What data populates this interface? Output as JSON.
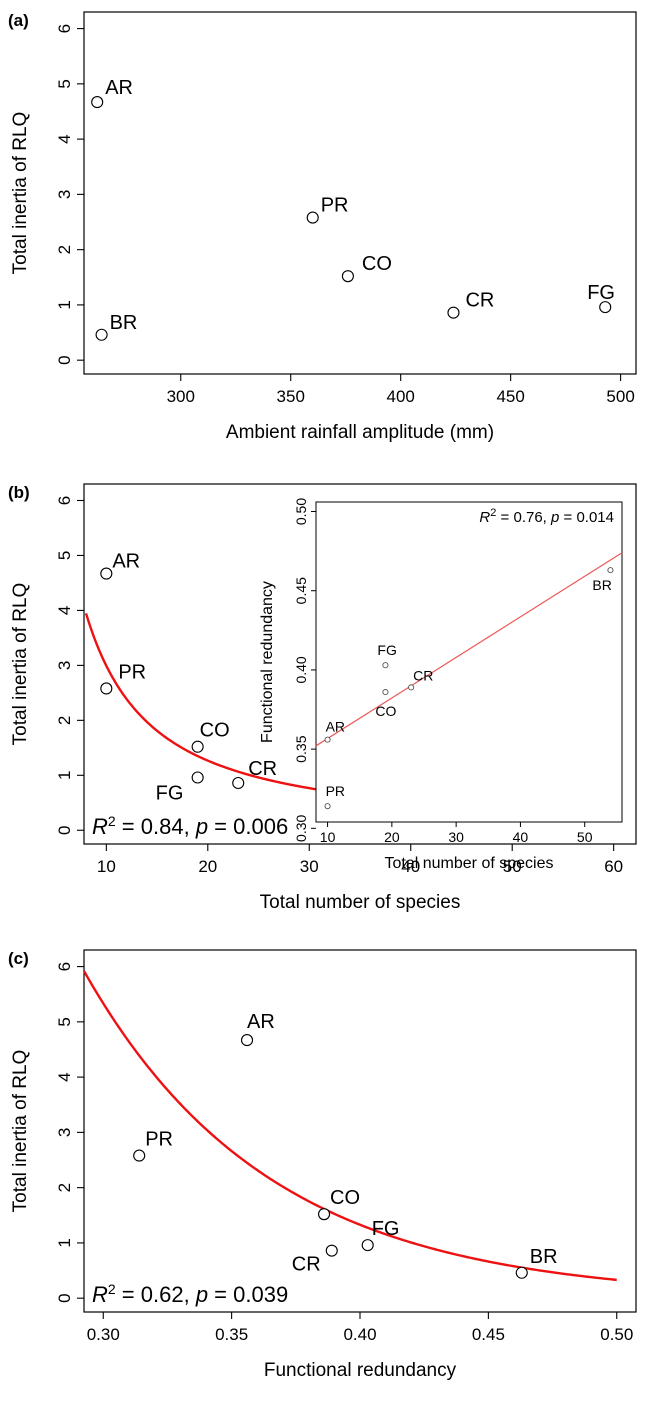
{
  "chart_data": [
    {
      "panel": "(a)",
      "type": "scatter",
      "xlabel": "Ambient rainfall amplitude (mm)",
      "ylabel": "Total inertia of RLQ",
      "xlim": [
        256,
        507
      ],
      "ylim": [
        -0.25,
        6.3
      ],
      "xticks": [
        300,
        350,
        400,
        450,
        500
      ],
      "yticks": [
        0,
        1,
        2,
        3,
        4,
        5,
        6
      ],
      "points": [
        {
          "label": "AR",
          "x": 262,
          "y": 4.67
        },
        {
          "label": "BR",
          "x": 264,
          "y": 0.46
        },
        {
          "label": "PR",
          "x": 360,
          "y": 2.58
        },
        {
          "label": "CO",
          "x": 376,
          "y": 1.52
        },
        {
          "label": "CR",
          "x": 424,
          "y": 0.86
        },
        {
          "label": "FG",
          "x": 493,
          "y": 0.96
        }
      ]
    },
    {
      "panel": "(b)",
      "type": "scatter",
      "xlabel": "Total number of species",
      "ylabel": "Total inertia of RLQ",
      "xlim": [
        7.8,
        62.2
      ],
      "ylim": [
        -0.25,
        6.3
      ],
      "xticks": [
        10,
        20,
        30,
        40,
        50,
        60
      ],
      "yticks": [
        0,
        1,
        2,
        3,
        4,
        5,
        6
      ],
      "points": [
        {
          "label": "AR",
          "x": 10,
          "y": 4.67
        },
        {
          "label": "PR",
          "x": 10,
          "y": 2.58
        },
        {
          "label": "CO",
          "x": 19,
          "y": 1.52
        },
        {
          "label": "FG",
          "x": 19,
          "y": 0.96
        },
        {
          "label": "CR",
          "x": 23,
          "y": 0.86
        },
        {
          "label": "BR",
          "x": 54,
          "y": 0.46
        }
      ],
      "fit": {
        "model": "power",
        "a": 52,
        "b": -1.24,
        "x_from": 8,
        "x_to": 60,
        "color": "#ee1111"
      },
      "stat": {
        "r2_label": "R",
        "r2_sup": "2",
        "r2_rest": " = 0.84, ",
        "p_label": "p",
        "p_rest": " = 0.006"
      },
      "inset": {
        "xlabel": "Total number of species",
        "ylabel": "Functional redundancy",
        "xlim": [
          8.2,
          55.8
        ],
        "ylim": [
          0.304,
          0.506
        ],
        "xticks": [
          10,
          20,
          30,
          40,
          50
        ],
        "yticks": [
          0.3,
          0.35,
          0.4,
          0.45,
          0.5
        ],
        "ytick_labels": [
          "0.30",
          "0.35",
          "0.40",
          "0.45",
          "0.50"
        ],
        "points": [
          {
            "label": "AR",
            "x": 10,
            "y": 0.356
          },
          {
            "label": "PR",
            "x": 10,
            "y": 0.314
          },
          {
            "label": "FG",
            "x": 19,
            "y": 0.403
          },
          {
            "label": "CO",
            "x": 19,
            "y": 0.386
          },
          {
            "label": "CR",
            "x": 23,
            "y": 0.389
          },
          {
            "label": "BR",
            "x": 54,
            "y": 0.463
          }
        ],
        "fit": {
          "model": "linear",
          "intercept": 0.3311,
          "slope": 0.00256,
          "color": "#ee5555"
        },
        "stat": {
          "r2_label": "R",
          "r2_sup": "2",
          "r2_rest": " = 0.76, ",
          "p_label": "p",
          "p_rest": " = 0.014"
        }
      }
    },
    {
      "panel": "(c)",
      "type": "scatter",
      "xlabel": "Functional redundancy",
      "ylabel": "Total inertia of RLQ",
      "xlim": [
        0.2925,
        0.5075
      ],
      "ylim": [
        -0.25,
        6.3
      ],
      "xticks": [
        0.3,
        0.35,
        0.4,
        0.45,
        0.5
      ],
      "xtick_labels": [
        "0.30",
        "0.35",
        "0.40",
        "0.45",
        "0.50"
      ],
      "yticks": [
        0,
        1,
        2,
        3,
        4,
        5,
        6
      ],
      "points": [
        {
          "label": "AR",
          "x": 0.356,
          "y": 4.67
        },
        {
          "label": "PR",
          "x": 0.314,
          "y": 2.58
        },
        {
          "label": "CO",
          "x": 0.386,
          "y": 1.52
        },
        {
          "label": "CR",
          "x": 0.389,
          "y": 0.86
        },
        {
          "label": "FG",
          "x": 0.403,
          "y": 0.96
        },
        {
          "label": "BR",
          "x": 0.463,
          "y": 0.46
        }
      ],
      "fit": {
        "model": "exponential",
        "a": 5.92,
        "b": 0.2925,
        "c": 13.9,
        "x_from": 0.2925,
        "x_to": 0.5,
        "color": "#ee1111"
      },
      "stat": {
        "r2_label": "R",
        "r2_sup": "2",
        "r2_rest": " = 0.62, ",
        "p_label": "p",
        "p_rest": " = 0.039"
      }
    }
  ]
}
